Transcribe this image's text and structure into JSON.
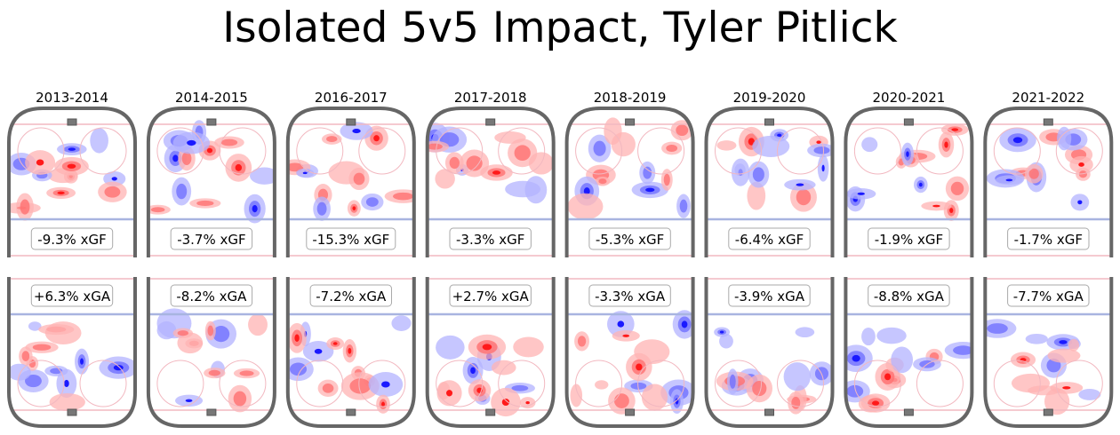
{
  "chart_data": {
    "type": "heatmap",
    "title": "Isolated 5v5 Impact, Tyler Pitlick",
    "panel_rows": [
      "offense (xGF)",
      "defense (xGA)"
    ],
    "colors": {
      "positive": "#ff0000",
      "negative": "#0000ff",
      "rink_border": "#666666",
      "red_line": "#f2b8c0",
      "blue_line": "#a8b4e0"
    },
    "seasons": [
      {
        "season": "2013-2014",
        "xGF_label": "-9.3% xGF",
        "xGF": -9.3,
        "xGA_label": "+6.3% xGA",
        "xGA": 6.3
      },
      {
        "season": "2014-2015",
        "xGF_label": "-3.7% xGF",
        "xGF": -3.7,
        "xGA_label": "-8.2% xGA",
        "xGA": -8.2
      },
      {
        "season": "2016-2017",
        "xGF_label": "-15.3% xGF",
        "xGF": -15.3,
        "xGA_label": "-7.2% xGA",
        "xGA": -7.2
      },
      {
        "season": "2017-2018",
        "xGF_label": "-3.3% xGF",
        "xGF": -3.3,
        "xGA_label": "+2.7% xGA",
        "xGA": 2.7
      },
      {
        "season": "2018-2019",
        "xGF_label": "-5.3% xGF",
        "xGF": -5.3,
        "xGA_label": "-3.3% xGA",
        "xGA": -3.3
      },
      {
        "season": "2019-2020",
        "xGF_label": "-6.4% xGF",
        "xGF": -6.4,
        "xGA_label": "-3.9% xGA",
        "xGA": -3.9
      },
      {
        "season": "2020-2021",
        "xGF_label": "-1.9% xGF",
        "xGF": -1.9,
        "xGA_label": "-8.8% xGA",
        "xGA": -8.8
      },
      {
        "season": "2021-2022",
        "xGF_label": "-1.7% xGF",
        "xGF": -1.7,
        "xGA_label": "-7.7% xGA",
        "xGA": -7.7
      }
    ]
  }
}
